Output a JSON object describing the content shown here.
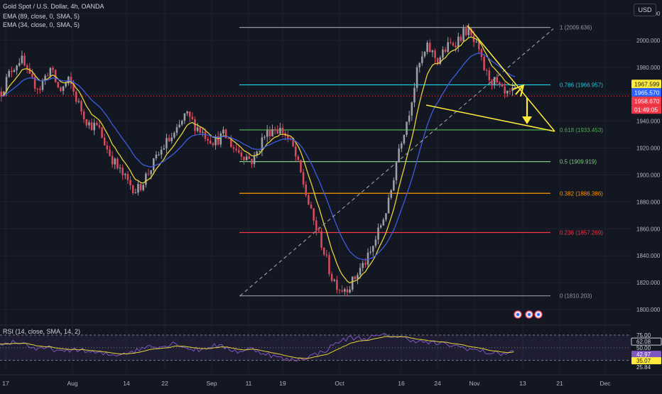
{
  "header": {
    "symbol": "Gold Spot / U.S. Dollar, 4h, OANDA",
    "ema89": "EMA (89, close, 0, SMA, 5)",
    "ema34": "EMA (34, close, 0, SMA, 5)",
    "currency": "USD"
  },
  "rsi_legend": "RSI (14, close, SMA, 14, 2)",
  "colors": {
    "background": "#131722",
    "candle_up": "#9c9fa8",
    "candle_down": "#d94a5b",
    "ema34": "#e5d33a",
    "ema89": "#3d5ce0",
    "rsi": "#7e57c2",
    "rsi_ma": "#e5d33a",
    "triangle": "#ffeb3b",
    "current_price": "#f23645"
  },
  "chart_data": {
    "type": "candlestick",
    "price_axis": {
      "range": [
        1790,
        2030
      ],
      "ticks": [
        1800,
        1820,
        1840,
        1860,
        1880,
        1900,
        1920,
        1940,
        1960,
        1980,
        2000,
        2020
      ],
      "tick_labels": [
        "1800.000",
        "1820.000",
        "1840.000",
        "1860.000",
        "1880.000",
        "1900.000",
        "1920.000",
        "1940.000",
        "1960.000",
        "1980.000",
        "2000.000",
        "2020.000"
      ]
    },
    "time_axis": {
      "labels": [
        "17",
        "Aug",
        "14",
        "22",
        "Sep",
        "11",
        "19",
        "Oct",
        "16",
        "24",
        "Nov",
        "13",
        "21",
        "Dec"
      ]
    },
    "price_path": [
      1962,
      1978,
      1987,
      1970,
      1965,
      1980,
      1962,
      1970,
      1952,
      1938,
      1935,
      1918,
      1905,
      1895,
      1888,
      1900,
      1912,
      1924,
      1930,
      1945,
      1937,
      1930,
      1925,
      1930,
      1920,
      1915,
      1910,
      1928,
      1935,
      1933,
      1922,
      1898,
      1870,
      1850,
      1825,
      1815,
      1818,
      1830,
      1840,
      1860,
      1880,
      1920,
      1945,
      1980,
      1995,
      1985,
      1995,
      2000,
      2008,
      1995,
      1975,
      1968,
      1958,
      1962
    ],
    "fibonacci": [
      {
        "label": "1 (2009.636)",
        "value": 2009.636,
        "color": "#9598a1"
      },
      {
        "label": "0.786 (1966.957)",
        "value": 1966.957,
        "color": "#26c6da"
      },
      {
        "label": "0.618 (1933.453)",
        "value": 1933.453,
        "color": "#4caf50"
      },
      {
        "label": "0.5 (1909.919)",
        "value": 1909.919,
        "color": "#81c784"
      },
      {
        "label": "0.382 (1886.386)",
        "value": 1886.386,
        "color": "#ff9800"
      },
      {
        "label": "0.236 (1857.269)",
        "value": 1857.269,
        "color": "#f23645"
      },
      {
        "label": "0 (1810.203)",
        "value": 1810.203,
        "color": "#9598a1"
      }
    ],
    "price_labels": [
      {
        "text": "1967.599",
        "value": 1967.599,
        "bg": "#ffeb3b",
        "fg": "#131722"
      },
      {
        "text": "1965.570",
        "value": 1965.57,
        "bg": "#2962ff",
        "fg": "#ffffff"
      },
      {
        "text": "1958.670",
        "value": 1958.67,
        "bg": "#f23645",
        "fg": "#ffffff"
      },
      {
        "text": "01:49:05",
        "value": 1955.2,
        "bg": "#f23645",
        "fg": "#ffffff"
      }
    ],
    "rsi_axis": {
      "ticks": [
        {
          "text": "75.00",
          "value": 75,
          "bg": "",
          "fg": "#d1d4dc"
        },
        {
          "text": "62.08",
          "value": 62.08,
          "bg": "#131722",
          "fg": "#d1d4dc",
          "border": "#d1d4dc"
        },
        {
          "text": "50.00",
          "value": 50,
          "bg": "",
          "fg": "#d1d4dc"
        },
        {
          "text": "42.97",
          "value": 42.97,
          "bg": "#7e57c2",
          "fg": "#ffffff"
        },
        {
          "text": "35.07",
          "value": 35.07,
          "bg": "#ffeb3b",
          "fg": "#131722"
        },
        {
          "text": "25.84",
          "value": 25.84,
          "bg": "",
          "fg": "#d1d4dc"
        }
      ],
      "bands": [
        25,
        75
      ],
      "midline": 50
    },
    "rsi_path": [
      55,
      62,
      58,
      45,
      50,
      40,
      48,
      42,
      38,
      35,
      40,
      45,
      55,
      52,
      60,
      48,
      45,
      55,
      50,
      42,
      48,
      40,
      32,
      25,
      28,
      35,
      45,
      62,
      70,
      68,
      72,
      75,
      70,
      65,
      60,
      58,
      55,
      50,
      45,
      40,
      38,
      42
    ]
  }
}
